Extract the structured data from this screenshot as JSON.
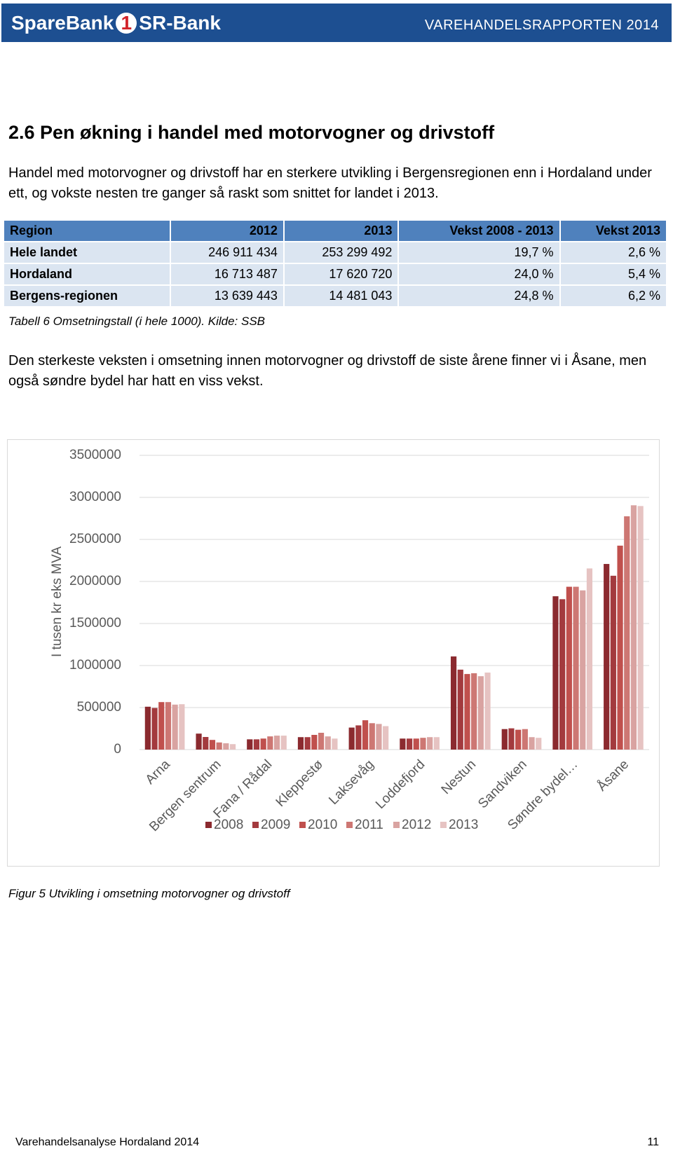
{
  "header": {
    "logo": [
      "SpareBank",
      "1",
      "SR-Bank"
    ],
    "report": "VAREHANDELSRAPPORTEN 2014"
  },
  "section_title": "2.6  Pen økning i handel med motorvogner og drivstoff",
  "paragraph_1": "Handel med motorvogner og drivstoff har en sterkere utvikling i Bergensregionen enn i Hordaland under ett, og vokste nesten tre ganger så raskt som snittet for landet i 2013.",
  "table": {
    "header": [
      "Region",
      "2012",
      "2013",
      "Vekst 2008 - 2013",
      "Vekst 2013"
    ],
    "rows": [
      [
        "Hele landet",
        "246 911 434",
        "253 299 492",
        "19,7 %",
        "2,6 %"
      ],
      [
        "Hordaland",
        "16 713 487",
        "17 620 720",
        "24,0 %",
        "5,4 %"
      ],
      [
        "Bergens-regionen",
        "13 639 443",
        "14 481 043",
        "24,8 %",
        "6,2 %"
      ]
    ]
  },
  "table_caption": "Tabell 6 Omsetningstall (i hele 1000). Kilde: SSB",
  "paragraph_2": "Den sterkeste veksten i omsetning innen motorvogner og drivstoff de siste årene finner vi i Åsane, men også søndre bydel har hatt en viss vekst.",
  "chart_data": {
    "type": "bar",
    "y_label": "I tusen kr eks MVA",
    "categories": [
      "Arna",
      "Bergen sentrum",
      "Fana / Rådal",
      "Kleppestø",
      "Laksevåg",
      "Loddefjord",
      "Nestun",
      "Sandviken",
      "Søndre bydel…",
      "Åsane"
    ],
    "series": [
      {
        "name": "2008",
        "color": "#8b2a2f",
        "values": [
          510000,
          190000,
          122000,
          148000,
          262000,
          131000,
          1108000,
          244000,
          1824000,
          2208000
        ]
      },
      {
        "name": "2009",
        "color": "#a33a3e",
        "values": [
          495000,
          150000,
          122000,
          148000,
          288000,
          131000,
          951000,
          253000,
          1789000,
          2068000
        ]
      },
      {
        "name": "2010",
        "color": "#c0504d",
        "values": [
          565000,
          115000,
          131000,
          175000,
          349000,
          131000,
          899000,
          236000,
          1937000,
          2426000
        ]
      },
      {
        "name": "2011",
        "color": "#cd7773",
        "values": [
          565000,
          85000,
          157000,
          200000,
          314000,
          140000,
          908000,
          244000,
          1937000,
          2775000
        ]
      },
      {
        "name": "2012",
        "color": "#d9a3a1",
        "values": [
          535000,
          75000,
          166000,
          157000,
          305000,
          148000,
          873000,
          148000,
          1894000,
          2906000
        ]
      },
      {
        "name": "2013",
        "color": "#e6c3c2",
        "values": [
          540000,
          65000,
          166000,
          131000,
          279000,
          148000,
          916000,
          140000,
          2155000,
          2897000
        ]
      }
    ],
    "ylim": [
      0,
      3500000
    ],
    "yticks": [
      0,
      500000,
      1000000,
      1500000,
      2000000,
      2500000,
      3000000,
      3500000
    ],
    "grid": true
  },
  "figure_caption": "Figur 5 Utvikling i omsetning motorvogner og drivstoff",
  "footer": {
    "left": "Varehandelsanalyse Hordaland 2014",
    "page": "11"
  }
}
